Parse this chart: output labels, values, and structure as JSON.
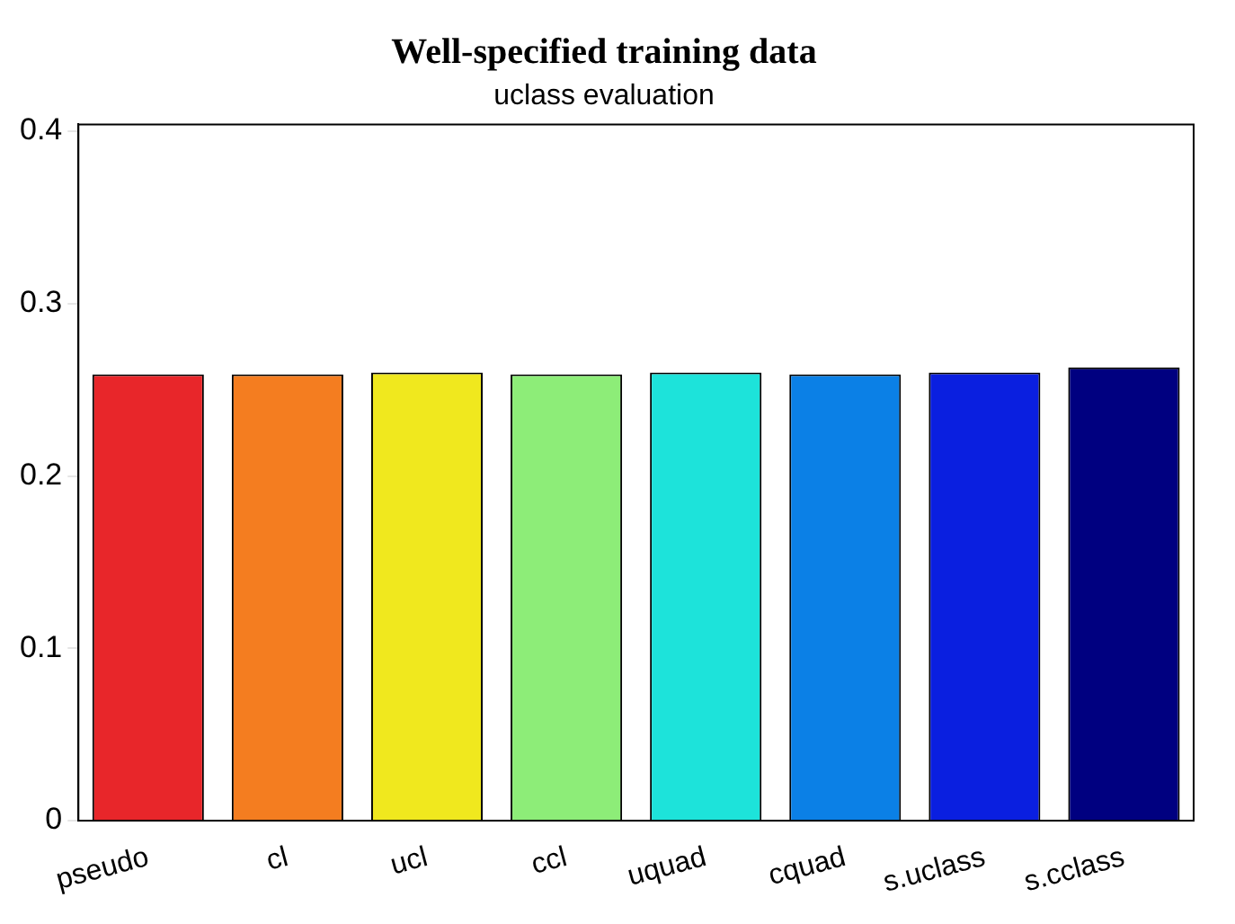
{
  "chart_data": {
    "type": "bar",
    "title": "Well-specified training data",
    "subtitle": "uclass evaluation",
    "categories": [
      "pseudo",
      "cl",
      "ucl",
      "ccl",
      "uquad",
      "cquad",
      "s.uclass",
      "s.cclass"
    ],
    "values": [
      0.259,
      0.259,
      0.26,
      0.259,
      0.26,
      0.259,
      0.26,
      0.263
    ],
    "colors": [
      "#e8262a",
      "#f47d20",
      "#f0e81e",
      "#8ded78",
      "#1de3da",
      "#0b80e6",
      "#0a1fe0",
      "#000080"
    ],
    "ylim": [
      0,
      0.404
    ],
    "yticks": [
      0,
      0.1,
      0.2,
      0.3,
      0.4
    ],
    "grid": false,
    "legend": false
  }
}
